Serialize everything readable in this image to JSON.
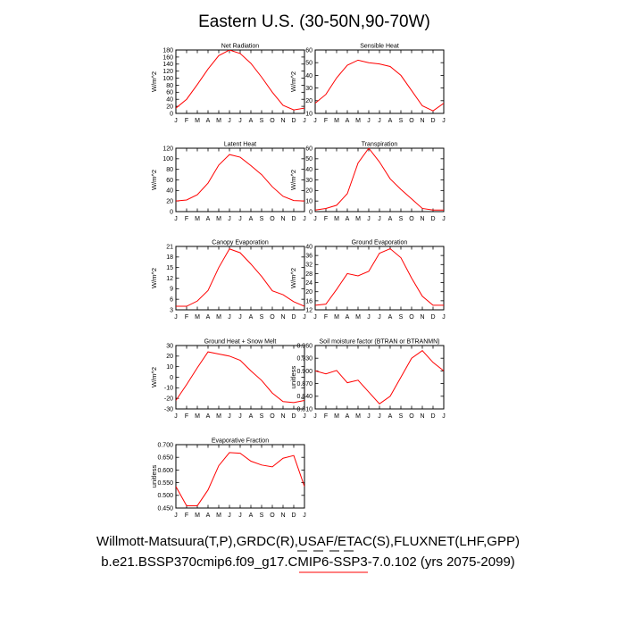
{
  "title": "Eastern U.S. (30-50N,90-70W)",
  "footer": {
    "line1": "Willmott-Matsuura(T,P),GRDC(R),USAF/ETAC(S),FLUXNET(LHF,GPP)",
    "line2": "b.e21.BSSP370cmip6.f09_g17.CMIP6-SSP3-7.0.102 (yrs 2075-2099)",
    "legend_colors": [
      "#000000",
      "#000000",
      "#000000",
      "#000000",
      "#ff0000"
    ]
  },
  "chart_data": [
    {
      "type": "line",
      "title": "Net Radiation",
      "ylabel": "W/m^2",
      "categories": [
        "J",
        "F",
        "M",
        "A",
        "M",
        "J",
        "J",
        "A",
        "S",
        "O",
        "N",
        "D",
        "J"
      ],
      "ylim": [
        0,
        180
      ],
      "yticks": [
        "0",
        "20",
        "40",
        "60",
        "80",
        "100",
        "120",
        "140",
        "160",
        "180"
      ],
      "series": [
        {
          "color": "#ff0000",
          "values": [
            15,
            40,
            82,
            126,
            164,
            180,
            170,
            142,
            103,
            60,
            23,
            10,
            15
          ]
        }
      ]
    },
    {
      "type": "line",
      "title": "Sensible Heat",
      "ylabel": "W/m^2",
      "categories": [
        "J",
        "F",
        "M",
        "A",
        "M",
        "J",
        "J",
        "A",
        "S",
        "O",
        "N",
        "D",
        "J"
      ],
      "ylim": [
        10,
        60
      ],
      "yticks": [
        "10",
        "20",
        "30",
        "40",
        "50",
        "60"
      ],
      "series": [
        {
          "color": "#ff0000",
          "values": [
            18,
            25,
            38,
            48,
            52,
            50,
            49,
            47,
            40,
            28,
            16,
            12,
            18
          ]
        }
      ]
    },
    {
      "type": "line",
      "title": "Latent Heat",
      "ylabel": "W/m^2",
      "categories": [
        "J",
        "F",
        "M",
        "A",
        "M",
        "J",
        "J",
        "A",
        "S",
        "O",
        "N",
        "D",
        "J"
      ],
      "ylim": [
        0,
        120
      ],
      "yticks": [
        "0",
        "20",
        "40",
        "60",
        "80",
        "100",
        "120"
      ],
      "series": [
        {
          "color": "#ff0000",
          "values": [
            20,
            22,
            32,
            54,
            88,
            108,
            103,
            87,
            70,
            47,
            29,
            21,
            20
          ]
        }
      ]
    },
    {
      "type": "line",
      "title": "Transpiration",
      "ylabel": "W/m^2",
      "categories": [
        "J",
        "F",
        "M",
        "A",
        "M",
        "J",
        "J",
        "A",
        "S",
        "O",
        "N",
        "D",
        "J"
      ],
      "ylim": [
        0,
        60
      ],
      "yticks": [
        "0",
        "10",
        "20",
        "30",
        "40",
        "50",
        "60"
      ],
      "series": [
        {
          "color": "#ff0000",
          "values": [
            1.5,
            3,
            6,
            17,
            46,
            60,
            47,
            31,
            21,
            12,
            3,
            1.5,
            1.5
          ]
        }
      ]
    },
    {
      "type": "line",
      "title": "Canopy Evaporation",
      "ylabel": "W/m^2",
      "categories": [
        "J",
        "F",
        "M",
        "A",
        "M",
        "J",
        "J",
        "A",
        "S",
        "O",
        "N",
        "D",
        "J"
      ],
      "ylim": [
        3,
        21
      ],
      "yticks": [
        "3",
        "6",
        "9",
        "12",
        "15",
        "18",
        "21"
      ],
      "series": [
        {
          "color": "#ff0000",
          "values": [
            4,
            4,
            5.5,
            8.5,
            15,
            20.3,
            19.2,
            16,
            12.5,
            8.4,
            7.3,
            5.3,
            4
          ]
        }
      ]
    },
    {
      "type": "line",
      "title": "Ground Evaporation",
      "ylabel": "W/m^2",
      "categories": [
        "J",
        "F",
        "M",
        "A",
        "M",
        "J",
        "J",
        "A",
        "S",
        "O",
        "N",
        "D",
        "J"
      ],
      "ylim": [
        12,
        40
      ],
      "yticks": [
        "12",
        "16",
        "20",
        "24",
        "28",
        "32",
        "36",
        "40"
      ],
      "series": [
        {
          "color": "#ff0000",
          "values": [
            14,
            14.5,
            21,
            28,
            27,
            29,
            37,
            39,
            35,
            26,
            18,
            14,
            14
          ]
        }
      ]
    },
    {
      "type": "line",
      "title": "Ground Heat + Snow Melt",
      "ylabel": "W/m^2",
      "categories": [
        "J",
        "F",
        "M",
        "A",
        "M",
        "J",
        "J",
        "A",
        "S",
        "O",
        "N",
        "D",
        "J"
      ],
      "ylim": [
        -30,
        30
      ],
      "yticks": [
        "-30",
        "-20",
        "-10",
        "0",
        "10",
        "20",
        "30"
      ],
      "series": [
        {
          "color": "#ff0000",
          "values": [
            -22,
            -7,
            9,
            24,
            22,
            20,
            16,
            6,
            -3,
            -15,
            -23,
            -24,
            -22
          ]
        }
      ]
    },
    {
      "type": "line",
      "title": "Soil moisture factor (BTRAN or BTRANMN)",
      "ylabel": "unitless",
      "categories": [
        "J",
        "F",
        "M",
        "A",
        "M",
        "J",
        "J",
        "A",
        "S",
        "O",
        "N",
        "D",
        "J"
      ],
      "ylim": [
        0.81,
        0.96
      ],
      "yticks": [
        "0.810",
        "0.840",
        "0.870",
        "0.900",
        "0.930",
        "0.960"
      ],
      "series": [
        {
          "color": "#ff0000",
          "values": [
            0.9,
            0.893,
            0.901,
            0.872,
            0.878,
            0.85,
            0.822,
            0.84,
            0.885,
            0.93,
            0.948,
            0.92,
            0.9
          ]
        }
      ]
    },
    {
      "type": "line",
      "title": "Evaporative Fraction",
      "ylabel": "unitless",
      "categories": [
        "J",
        "F",
        "M",
        "A",
        "M",
        "J",
        "J",
        "A",
        "S",
        "O",
        "N",
        "D",
        "J"
      ],
      "ylim": [
        0.44,
        0.72
      ],
      "yticks": [
        "0.450",
        "0.500",
        "0.550",
        "0.600",
        "0.650",
        "0.700"
      ],
      "series": [
        {
          "color": "#ff0000",
          "values": [
            0.535,
            0.45,
            0.45,
            0.52,
            0.627,
            0.685,
            0.682,
            0.647,
            0.63,
            0.622,
            0.66,
            0.672,
            0.535
          ]
        }
      ]
    }
  ]
}
